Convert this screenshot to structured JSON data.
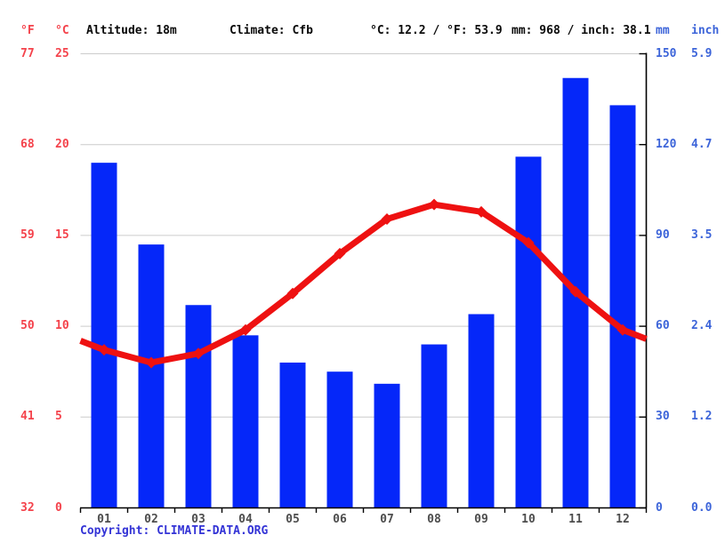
{
  "header": {
    "f_unit": "°F",
    "c_unit": "°C",
    "altitude": "Altitude: 18m",
    "climate": "Climate: Cfb",
    "avg_temp": "°C: 12.2 / °F: 53.9",
    "total_precip": "mm: 968 / inch: 38.1",
    "mm_unit": "mm",
    "inch_unit": "inch"
  },
  "copyright": "Copyright: CLIMATE-DATA.ORG",
  "colors": {
    "bar_blue": "#0527f9",
    "line_red": "#ee1111",
    "red_text": "#f4424b",
    "blue_text": "#3c64d9",
    "month_text": "#4d4d4d",
    "gridline": "#cccccc",
    "axis": "#000000"
  },
  "chart_data": {
    "type": "bar+line",
    "title": "Climate graph (climogram): monthly precipitation bars and temperature line",
    "categories": [
      "01",
      "02",
      "03",
      "04",
      "05",
      "06",
      "07",
      "08",
      "09",
      "10",
      "11",
      "12"
    ],
    "series": [
      {
        "name": "Precipitation (mm)",
        "type": "bar",
        "values": [
          114,
          87,
          67,
          57,
          48,
          45,
          41,
          54,
          64,
          116,
          142,
          133
        ]
      },
      {
        "name": "Temperature (°C)",
        "type": "line",
        "values": [
          8.7,
          8.0,
          8.5,
          9.8,
          11.8,
          14.0,
          15.9,
          16.7,
          16.3,
          14.6,
          11.9,
          9.8
        ]
      }
    ],
    "line_edge_extension_c": {
      "left": 9.2,
      "right": 9.3
    },
    "axes": {
      "left_f_ticks": [
        77,
        68,
        59,
        50,
        41,
        32
      ],
      "left_c_ticks": [
        25,
        20,
        15,
        10,
        5,
        0
      ],
      "right_mm_ticks": [
        150,
        120,
        90,
        60,
        30,
        0
      ],
      "right_inch_ticks": [
        "5.9",
        "4.7",
        "3.5",
        "2.4",
        "1.2",
        "0.0"
      ],
      "ylim_c": [
        0,
        25
      ],
      "ylim_mm": [
        0,
        150
      ],
      "grid": true
    }
  }
}
